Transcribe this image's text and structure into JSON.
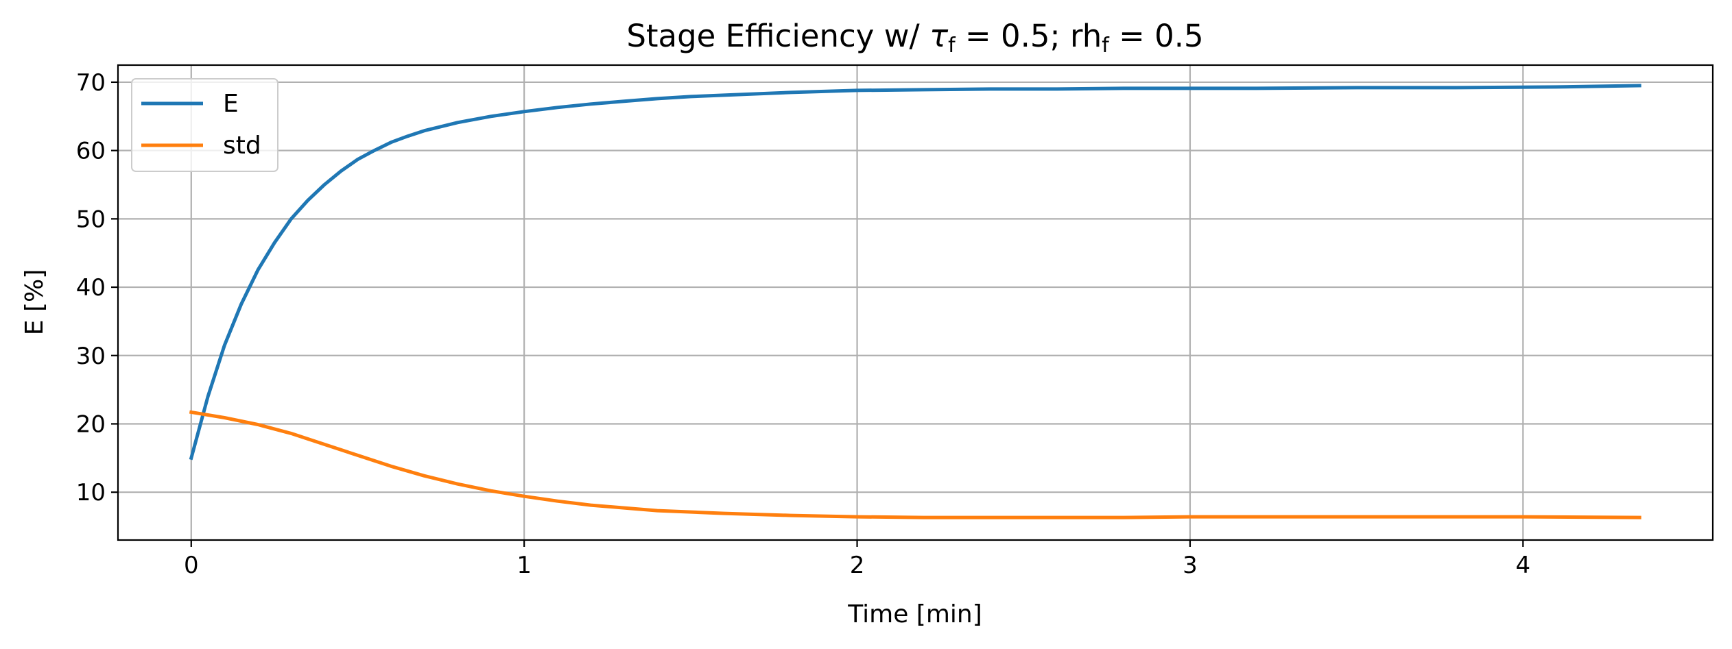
{
  "chart_data": {
    "type": "line",
    "title": {
      "prefix": "Stage Efficiency w/ ",
      "tau_symbol": "τ",
      "tau_sub": "f",
      "tau_rest": " = 0.5; rh",
      "rh_sub": "f",
      "rh_rest": " = 0.5"
    },
    "xlabel": "Time [min]",
    "ylabel": "E [%]",
    "xlim": [
      -0.22,
      4.57
    ],
    "ylim": [
      3,
      72.5
    ],
    "xticks": [
      0,
      1,
      2,
      3,
      4
    ],
    "yticks": [
      10,
      20,
      30,
      40,
      50,
      60,
      70
    ],
    "grid": true,
    "legend_position": "upper-left",
    "series": [
      {
        "name": "E",
        "color": "#1f77b4",
        "x": [
          0,
          0.05,
          0.1,
          0.15,
          0.2,
          0.25,
          0.3,
          0.35,
          0.4,
          0.45,
          0.5,
          0.55,
          0.6,
          0.65,
          0.7,
          0.8,
          0.9,
          1.0,
          1.1,
          1.2,
          1.3,
          1.4,
          1.5,
          1.6,
          1.8,
          2.0,
          2.2,
          2.4,
          2.6,
          2.8,
          3.0,
          3.2,
          3.5,
          3.8,
          4.1,
          4.35
        ],
        "y": [
          15,
          24,
          31.5,
          37.5,
          42.5,
          46.5,
          50,
          52.7,
          55,
          57,
          58.7,
          60,
          61.2,
          62.1,
          62.9,
          64.1,
          65,
          65.7,
          66.3,
          66.8,
          67.2,
          67.6,
          67.9,
          68.1,
          68.5,
          68.8,
          68.9,
          69.0,
          69.0,
          69.1,
          69.1,
          69.1,
          69.2,
          69.2,
          69.3,
          69.5
        ]
      },
      {
        "name": "std",
        "color": "#ff7f0e",
        "x": [
          0,
          0.1,
          0.2,
          0.3,
          0.4,
          0.5,
          0.6,
          0.7,
          0.8,
          0.9,
          1.0,
          1.1,
          1.2,
          1.3,
          1.4,
          1.6,
          1.8,
          2.0,
          2.2,
          2.5,
          2.8,
          3.0,
          3.5,
          4.0,
          4.35
        ],
        "y": [
          21.7,
          20.9,
          19.9,
          18.6,
          17.0,
          15.4,
          13.8,
          12.4,
          11.2,
          10.2,
          9.4,
          8.7,
          8.1,
          7.7,
          7.3,
          6.9,
          6.6,
          6.4,
          6.3,
          6.3,
          6.3,
          6.4,
          6.4,
          6.4,
          6.3
        ]
      }
    ]
  }
}
